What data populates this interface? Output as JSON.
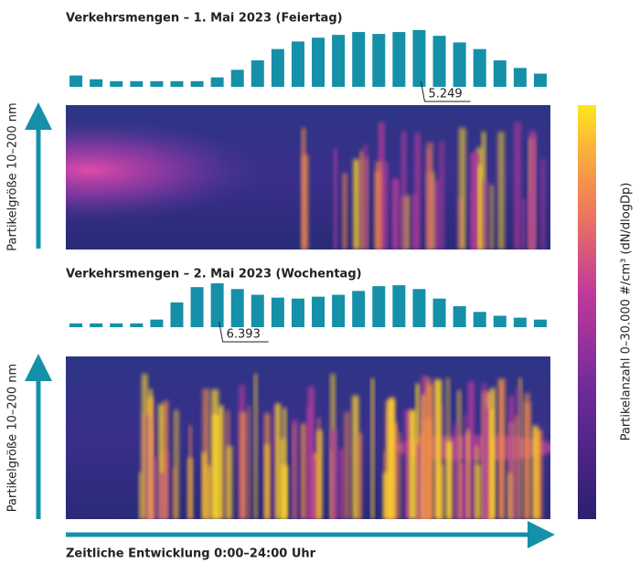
{
  "chart_data": [
    {
      "type": "bar",
      "title": "Verkehrsmengen – 1. Mai 2023 (Feiertag)",
      "color": "#1590a8",
      "values": [
        1050,
        700,
        525,
        525,
        525,
        525,
        525,
        875,
        1575,
        2450,
        3500,
        4200,
        4550,
        4813,
        5075,
        4900,
        5075,
        5249,
        4725,
        4113,
        3500,
        2450,
        1750,
        1225
      ],
      "value_labels": [
        null,
        null,
        null,
        null,
        null,
        null,
        null,
        null,
        null,
        null,
        null,
        null,
        null,
        null,
        null,
        null,
        null,
        "5.249",
        null,
        null,
        null,
        null,
        null,
        null
      ],
      "ylabel": "Partikelgröße 10–200 nm"
    },
    {
      "type": "bar",
      "title": "Verkehrsmengen – 2. Mai 2023 (Wochentag)",
      "color": "#1590a8",
      "values": [
        556,
        556,
        556,
        556,
        1112,
        3613,
        5838,
        6393,
        5560,
        4725,
        4308,
        4169,
        4447,
        4725,
        5281,
        5976,
        6115,
        5560,
        4169,
        3058,
        2224,
        1668,
        1390,
        1112
      ],
      "value_labels": [
        null,
        null,
        null,
        null,
        null,
        null,
        null,
        "6.393",
        null,
        null,
        null,
        null,
        null,
        null,
        null,
        null,
        null,
        null,
        null,
        null,
        null,
        null,
        null,
        null
      ],
      "ylabel": "Partikelgröße 10–200 nm"
    }
  ],
  "colorbar_label": "Partikelanzahl 0–30.000 #/cm³ (dN/dlogDp)",
  "xlabel": "Zeitliche Entwicklung 0:00–24:00 Uhr"
}
